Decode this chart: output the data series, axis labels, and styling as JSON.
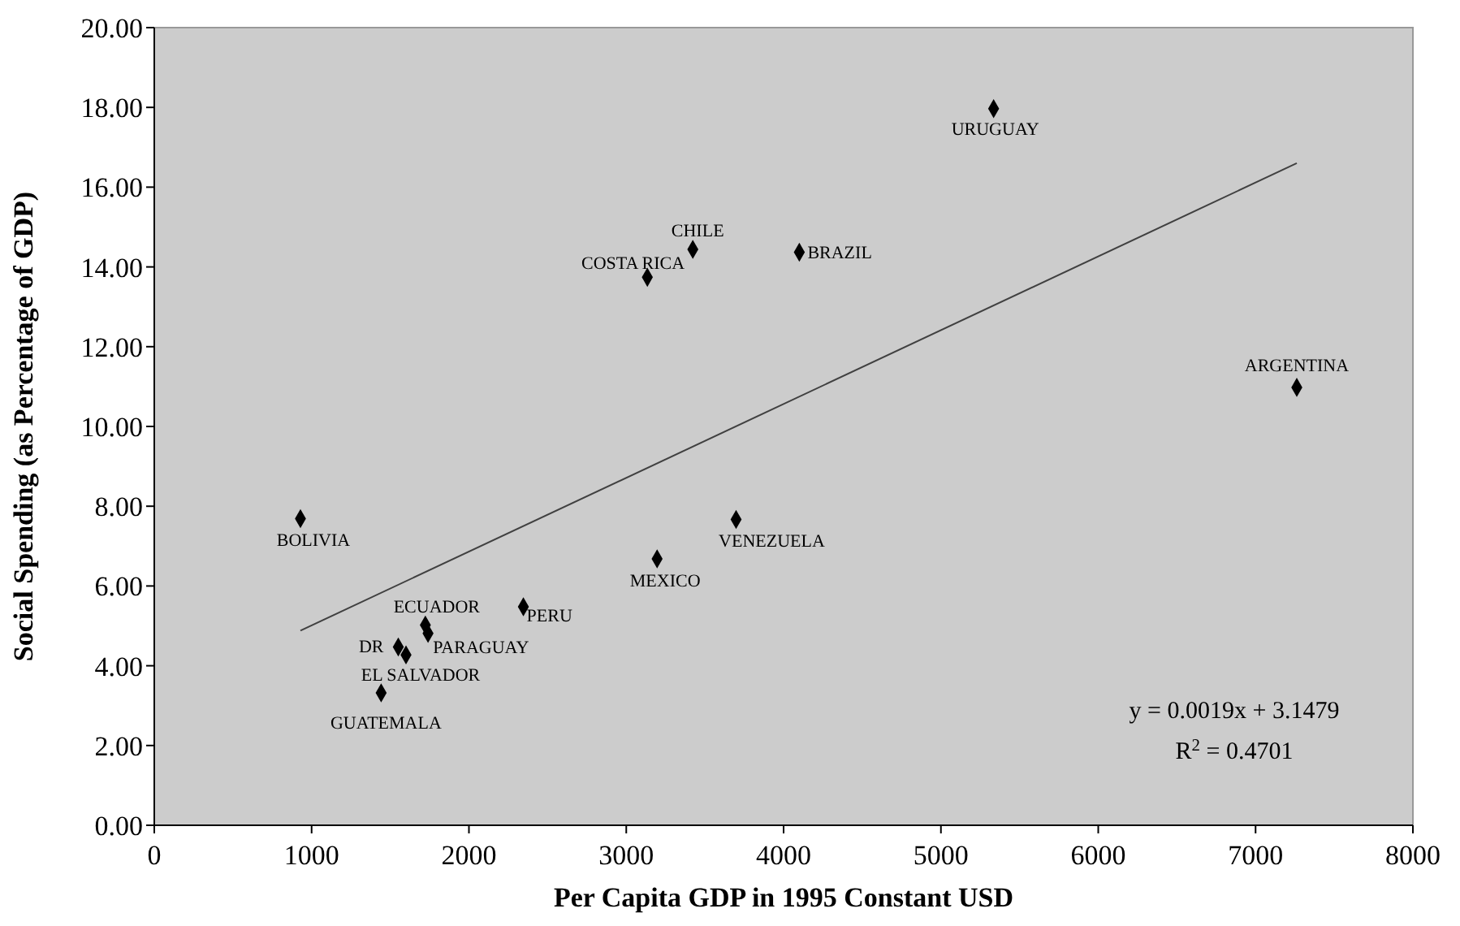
{
  "chart_data": {
    "type": "scatter",
    "xlabel": "Per Capita GDP in 1995 Constant USD",
    "ylabel": "Social Spending (as Percentage of GDP)",
    "xlim": [
      0,
      8000
    ],
    "xticks": [
      0,
      1000,
      2000,
      3000,
      4000,
      5000,
      6000,
      7000,
      8000
    ],
    "ylim": [
      0,
      20
    ],
    "yticks": [
      {
        "value": 0,
        "label": "0.00"
      },
      {
        "value": 2,
        "label": "2.00"
      },
      {
        "value": 4,
        "label": "4.00"
      },
      {
        "value": 6,
        "label": "6.00"
      },
      {
        "value": 8,
        "label": "8.00"
      },
      {
        "value": 10,
        "label": "10.00"
      },
      {
        "value": 12,
        "label": "12.00"
      },
      {
        "value": 14,
        "label": "14.00"
      },
      {
        "value": 16,
        "label": "16.00"
      },
      {
        "value": 18,
        "label": "18.00"
      },
      {
        "value": 20,
        "label": "20.00"
      }
    ],
    "grid": false,
    "series": [
      {
        "marker": "diamond",
        "color": "#000000",
        "x": [
          5335,
          4100,
          3423,
          3134,
          7262,
          929,
          3698,
          3196,
          2346,
          1723,
          1740,
          1551,
          1600,
          1442
        ],
        "values": [
          17.97,
          14.37,
          14.44,
          13.74,
          10.98,
          7.69,
          7.67,
          6.68,
          5.48,
          5.02,
          4.81,
          4.47,
          4.27,
          3.32
        ],
        "value_labels": [
          "URUGUAY",
          "BRAZIL",
          "CHILE",
          "COSTA RICA",
          "ARGENTINA",
          "BOLIVIA",
          "VENEZUELA",
          "MEXICO",
          "PERU",
          "ECUADOR",
          "PARAGUAY",
          "DR",
          "EL SALVADOR",
          "GUATEMALA"
        ]
      },
      {
        "type": "line",
        "marker": "none",
        "color": "#404040",
        "x": [
          929,
          7262
        ],
        "values": [
          4.88,
          16.6
        ]
      }
    ],
    "annotations": [
      "y = 0.0019x + 3.1479",
      "R$^{2}$ = 0.4701"
    ]
  }
}
